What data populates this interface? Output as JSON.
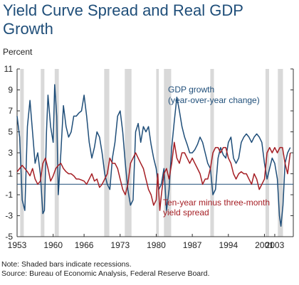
{
  "chart_data": {
    "type": "line",
    "title": "Yield Curve Spread and Real GDP Growth",
    "ylabel": "Percent",
    "xlabel": "",
    "xlim": [
      1953,
      2006.6
    ],
    "ylim": [
      -5,
      11
    ],
    "y_ticks": [
      -5,
      -3,
      -1,
      1,
      3,
      5,
      7,
      9,
      11
    ],
    "x_ticks": [
      1953,
      1960,
      1966,
      1973,
      1980,
      1987,
      1994,
      2001,
      2003
    ],
    "zero_line": 0,
    "recessions": [
      [
        1953.6,
        1954.3
      ],
      [
        1957.6,
        1958.3
      ],
      [
        1960.3,
        1961.1
      ],
      [
        1969.9,
        1970.9
      ],
      [
        1973.9,
        1975.2
      ],
      [
        1980.0,
        1980.5
      ],
      [
        1981.5,
        1982.9
      ],
      [
        1990.5,
        1991.2
      ],
      [
        2001.2,
        2001.9
      ],
      [
        2003.6,
        2004.6
      ]
    ],
    "series": [
      {
        "name": "GDP growth (year-over-year change)",
        "color": "#1f4e79",
        "x": [
          1953.0,
          1953.5,
          1954.0,
          1954.5,
          1955.0,
          1955.5,
          1956.0,
          1956.5,
          1957.0,
          1957.5,
          1958.0,
          1958.3,
          1958.7,
          1959.0,
          1959.5,
          1960.0,
          1960.3,
          1960.7,
          1961.0,
          1961.5,
          1962.0,
          1962.5,
          1963.0,
          1963.5,
          1964.0,
          1964.5,
          1965.0,
          1965.5,
          1966.0,
          1966.5,
          1967.0,
          1967.5,
          1968.0,
          1968.5,
          1969.0,
          1969.5,
          1970.0,
          1970.5,
          1971.0,
          1971.5,
          1972.0,
          1972.5,
          1973.0,
          1973.5,
          1974.0,
          1974.5,
          1975.0,
          1975.5,
          1976.0,
          1976.5,
          1977.0,
          1977.5,
          1978.0,
          1978.5,
          1979.0,
          1979.5,
          1980.0,
          1980.5,
          1981.0,
          1981.5,
          1982.0,
          1982.5,
          1983.0,
          1983.5,
          1984.0,
          1984.5,
          1985.0,
          1985.5,
          1986.0,
          1986.5,
          1987.0,
          1987.5,
          1988.0,
          1988.5,
          1989.0,
          1989.5,
          1990.0,
          1990.5,
          1991.0,
          1991.5,
          1992.0,
          1992.5,
          1993.0,
          1993.5,
          1994.0,
          1994.5,
          1995.0,
          1995.5,
          1996.0,
          1996.5,
          1997.0,
          1997.5,
          1998.0,
          1998.5,
          1999.0,
          1999.5,
          2000.0,
          2000.5,
          2001.0,
          2001.5,
          2002.0,
          2002.5,
          2003.0,
          2003.5,
          2003.9,
          2004.2,
          2004.6,
          2005.0,
          2005.5,
          2006.0
        ],
        "y": [
          6.5,
          4.5,
          -1.5,
          -2.5,
          5.5,
          8.0,
          5.0,
          2.0,
          3.0,
          1.0,
          -2.8,
          -2.5,
          5.0,
          8.5,
          5.5,
          4.0,
          9.5,
          6.5,
          -1.0,
          3.0,
          7.5,
          5.5,
          4.5,
          5.0,
          6.5,
          6.5,
          6.8,
          7.0,
          8.5,
          6.5,
          4.0,
          2.5,
          3.5,
          5.0,
          4.5,
          3.0,
          1.0,
          0.0,
          -0.5,
          2.5,
          4.0,
          6.5,
          7.0,
          5.0,
          2.0,
          -0.5,
          -2.0,
          -1.5,
          5.0,
          5.8,
          4.0,
          5.5,
          5.0,
          5.5,
          3.8,
          2.5,
          1.5,
          -0.5,
          0.0,
          1.5,
          -2.5,
          -0.5,
          3.5,
          6.0,
          8.3,
          7.0,
          5.5,
          4.5,
          3.8,
          3.0,
          3.0,
          3.3,
          3.8,
          4.5,
          4.0,
          3.0,
          2.0,
          1.5,
          -1.0,
          -0.5,
          2.5,
          3.5,
          2.8,
          2.5,
          4.0,
          4.5,
          2.5,
          2.0,
          2.5,
          4.0,
          4.5,
          4.8,
          4.5,
          4.0,
          4.5,
          4.8,
          4.5,
          4.0,
          2.0,
          0.5,
          1.5,
          2.5,
          2.0,
          0.5,
          -3.0,
          -4.0,
          -2.0,
          2.0,
          3.0,
          3.5
        ]
      },
      {
        "name": "Ten-year minus three-month yield spread",
        "color": "#a51e24",
        "x": [
          1953.0,
          1953.5,
          1954.0,
          1954.5,
          1955.0,
          1955.5,
          1956.0,
          1956.5,
          1957.0,
          1957.5,
          1958.0,
          1958.5,
          1959.0,
          1959.5,
          1960.0,
          1960.5,
          1961.0,
          1961.5,
          1962.0,
          1962.5,
          1963.0,
          1963.5,
          1964.0,
          1964.5,
          1965.0,
          1965.5,
          1966.0,
          1966.5,
          1967.0,
          1967.5,
          1968.0,
          1968.5,
          1969.0,
          1969.5,
          1970.0,
          1970.5,
          1971.0,
          1971.5,
          1972.0,
          1972.5,
          1973.0,
          1973.5,
          1974.0,
          1974.5,
          1975.0,
          1975.5,
          1976.0,
          1976.5,
          1977.0,
          1977.5,
          1978.0,
          1978.5,
          1979.0,
          1979.5,
          1980.0,
          1980.3,
          1980.7,
          1981.0,
          1981.5,
          1982.0,
          1982.5,
          1983.0,
          1983.5,
          1984.0,
          1984.5,
          1985.0,
          1985.5,
          1986.0,
          1986.5,
          1987.0,
          1987.5,
          1988.0,
          1988.5,
          1989.0,
          1989.5,
          1990.0,
          1990.5,
          1991.0,
          1991.5,
          1992.0,
          1992.5,
          1993.0,
          1993.5,
          1994.0,
          1994.5,
          1995.0,
          1995.5,
          1996.0,
          1996.5,
          1997.0,
          1997.5,
          1998.0,
          1998.5,
          1999.0,
          1999.5,
          2000.0,
          2000.5,
          2001.0,
          2001.5,
          2002.0,
          2002.5,
          2003.0,
          2003.5,
          2004.0,
          2004.5,
          2005.0,
          2005.5,
          2006.0
        ],
        "y": [
          1.2,
          1.5,
          1.8,
          1.5,
          1.2,
          0.8,
          1.5,
          0.5,
          0.0,
          0.3,
          2.0,
          2.5,
          1.5,
          0.3,
          0.8,
          1.5,
          1.8,
          2.0,
          1.5,
          1.2,
          1.0,
          1.0,
          0.8,
          0.5,
          0.5,
          0.4,
          0.3,
          0.0,
          0.5,
          1.0,
          0.3,
          0.5,
          -0.3,
          0.0,
          0.5,
          1.0,
          2.5,
          2.0,
          2.0,
          1.5,
          0.5,
          -0.5,
          -1.0,
          0.0,
          2.0,
          2.5,
          3.0,
          2.5,
          2.0,
          1.5,
          0.5,
          -0.5,
          -1.0,
          -2.0,
          -1.5,
          1.0,
          -2.5,
          -1.0,
          1.0,
          1.5,
          0.5,
          2.0,
          4.0,
          2.5,
          2.0,
          3.0,
          3.0,
          2.5,
          2.0,
          2.5,
          2.0,
          1.5,
          1.0,
          0.0,
          0.5,
          0.5,
          1.5,
          3.0,
          3.5,
          3.5,
          3.0,
          3.5,
          3.5,
          2.5,
          2.0,
          1.0,
          0.5,
          1.0,
          1.2,
          1.0,
          1.0,
          0.5,
          0.0,
          1.0,
          0.5,
          -0.5,
          0.0,
          0.5,
          3.0,
          3.5,
          3.0,
          3.5,
          3.0,
          3.5,
          3.5,
          2.0,
          1.0,
          3.0
        ]
      }
    ],
    "annotations": [
      {
        "lines": [
          "GDP growth",
          "(year-over-year change)"
        ],
        "color": "#1f4e79"
      },
      {
        "lines": [
          "Ten-year minus three-month",
          "yield spread"
        ],
        "color": "#a51e24"
      }
    ]
  },
  "notes": {
    "line1": "Note: Shaded bars indicate recessions.",
    "line2": "Source: Bureau of Economic Analysis,  Federal Reserve Board."
  }
}
